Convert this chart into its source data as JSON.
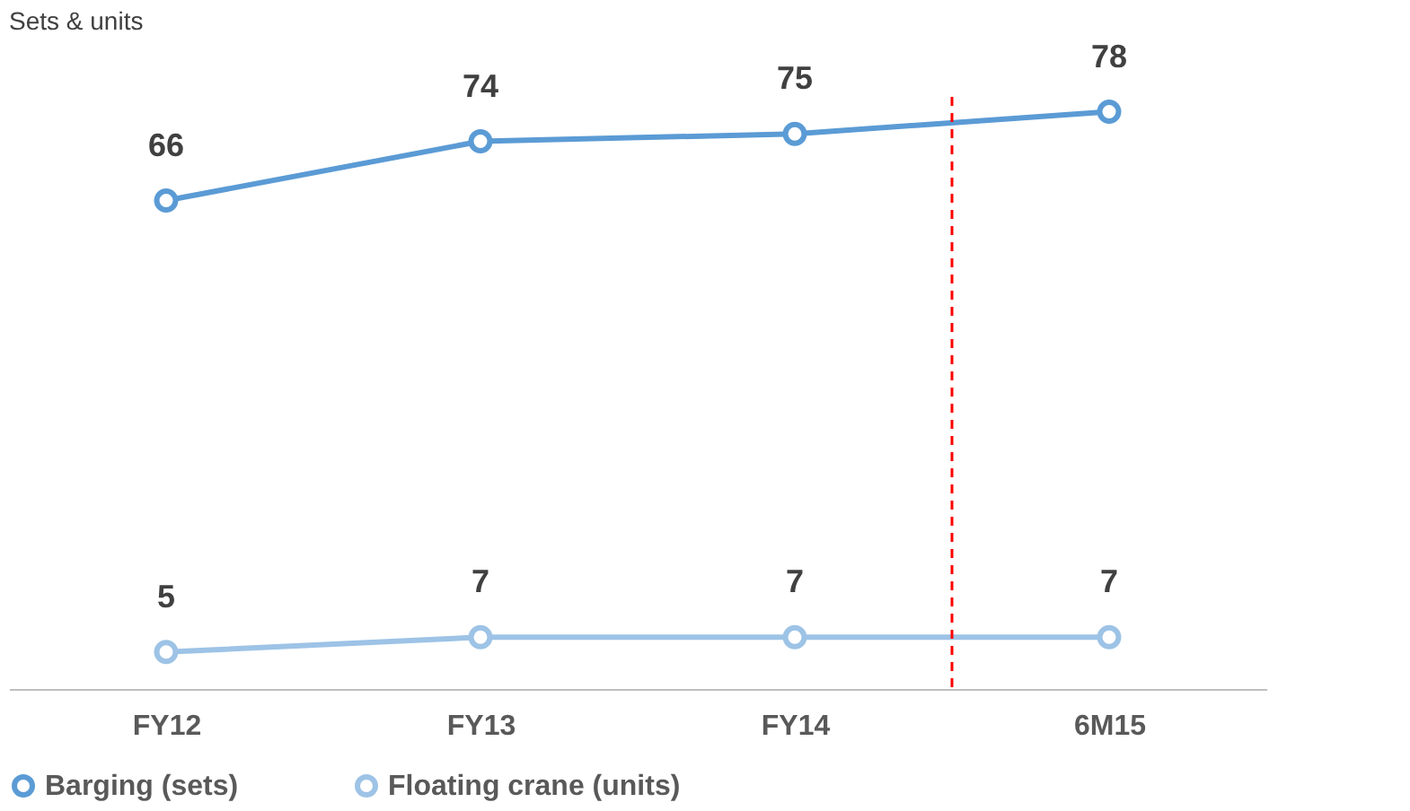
{
  "chart_data": {
    "type": "line",
    "title": "Sets & units",
    "categories": [
      "FY12",
      "FY13",
      "FY14",
      "6M15"
    ],
    "series": [
      {
        "name": "Barging (sets)",
        "color": "#5b9bd5",
        "values": [
          66,
          74,
          75,
          78
        ]
      },
      {
        "name": "Floating crane (units)",
        "color": "#9dc3e6",
        "values": [
          5,
          7,
          7,
          7
        ]
      }
    ],
    "data_labels": true,
    "marker": "circle",
    "line_style": "solid",
    "grid": false,
    "legend": "bottom",
    "tick_labels": "x"
  }
}
